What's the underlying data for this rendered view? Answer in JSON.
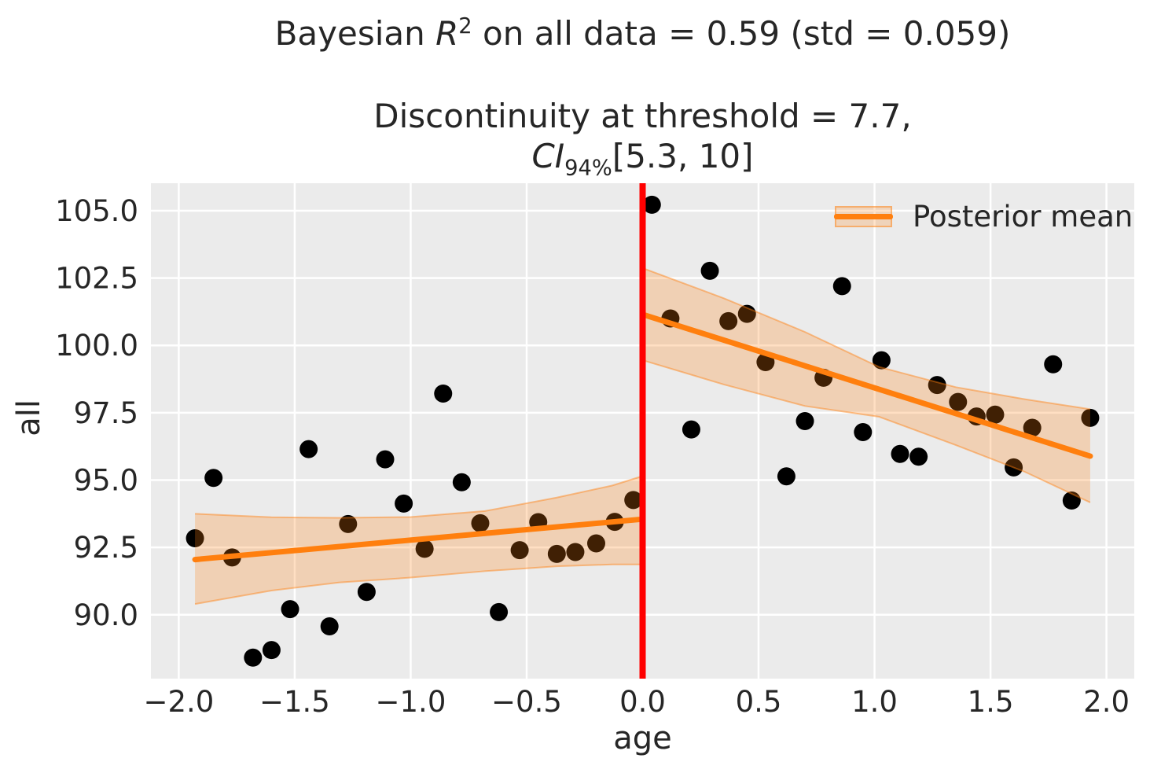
{
  "figure": {
    "title": {
      "pre": "Bayesian ",
      "r_var": "R",
      "r_sup": "2",
      "post": " on all data = 0.59 (std = 0.059)"
    },
    "subtitle": {
      "line1": "Discontinuity at threshold = 7.7,",
      "ci": "CI",
      "ci_sub": "94%",
      "interval": "[5.3, 10]"
    }
  },
  "colors": {
    "figure_bg": "#ffffff",
    "axes_bg": "#ebebeb",
    "grid": "#ffffff",
    "scatter": "#000000",
    "mean_line": "#ff7f0e",
    "band_fill": "rgba(255,127,14,0.25)",
    "band_edge": "rgba(255,127,14,0.45)",
    "threshold": "#ff0000",
    "text": "#262626"
  },
  "chart_data": {
    "type": "scatter",
    "title": "Bayesian R2 on all data = 0.59 (std = 0.059)",
    "subtitle": "Discontinuity at threshold = 7.7, CI94% [5.3, 10]",
    "xlabel": "age",
    "ylabel": "all",
    "xlim": [
      -2.12,
      2.12
    ],
    "ylim": [
      87.63,
      106.02
    ],
    "grid": true,
    "stats": {
      "r2": 0.59,
      "r2_std": 0.059,
      "discontinuity": 7.7,
      "ci_level": "94%",
      "ci_interval": [
        5.3,
        10
      ]
    },
    "xticks": {
      "values": [
        -2.0,
        -1.5,
        -1.0,
        -0.5,
        0.0,
        0.5,
        1.0,
        1.5,
        2.0
      ],
      "labels": [
        "−2.0",
        "−1.5",
        "−1.0",
        "−0.5",
        "0.0",
        "0.5",
        "1.0",
        "1.5",
        "2.0"
      ]
    },
    "yticks": {
      "values": [
        90.0,
        92.5,
        95.0,
        97.5,
        100.0,
        102.5,
        105.0
      ],
      "labels": [
        "90.0",
        "92.5",
        "95.0",
        "97.5",
        "100.0",
        "102.5",
        "105.0"
      ]
    },
    "threshold_line": {
      "x": 0.0
    },
    "legend": {
      "label": "Posterior mean",
      "position": "upper right"
    },
    "scatter": {
      "x": [
        -1.93,
        -1.85,
        -1.77,
        -1.68,
        -1.6,
        -1.52,
        -1.44,
        -1.35,
        -1.27,
        -1.19,
        -1.11,
        -1.03,
        -0.94,
        -0.86,
        -0.78,
        -0.7,
        -0.62,
        -0.53,
        -0.45,
        -0.37,
        -0.29,
        -0.2,
        -0.12,
        -0.04,
        0.04,
        0.12,
        0.21,
        0.29,
        0.37,
        0.45,
        0.53,
        0.62,
        0.7,
        0.78,
        0.86,
        0.95,
        1.03,
        1.11,
        1.19,
        1.27,
        1.36,
        1.44,
        1.52,
        1.6,
        1.68,
        1.77,
        1.85,
        1.93
      ],
      "y": [
        92.84,
        95.08,
        92.13,
        88.41,
        88.69,
        90.21,
        96.15,
        89.57,
        93.37,
        90.85,
        95.77,
        94.13,
        92.45,
        98.21,
        94.92,
        93.4,
        90.1,
        92.4,
        93.44,
        92.26,
        92.33,
        92.65,
        93.45,
        94.26,
        105.22,
        101.0,
        96.88,
        102.77,
        100.9,
        101.17,
        99.38,
        95.14,
        97.19,
        98.8,
        102.2,
        96.78,
        99.45,
        95.97,
        95.87,
        98.53,
        97.9,
        97.36,
        97.43,
        95.47,
        96.94,
        99.3,
        94.24,
        97.31
      ]
    },
    "posterior_mean": [
      {
        "side": "left",
        "x": [
          -1.93,
          0.0
        ],
        "y": [
          92.05,
          93.55
        ]
      },
      {
        "side": "right",
        "x": [
          0.0,
          1.93
        ],
        "y": [
          101.15,
          95.89
        ]
      }
    ],
    "ci_bands": [
      {
        "side": "left",
        "x": [
          -1.93,
          -1.6,
          -1.31,
          -1.0,
          -0.68,
          -0.37,
          -0.13,
          0.0
        ],
        "upper": [
          93.75,
          93.62,
          93.6,
          93.63,
          93.85,
          94.35,
          94.8,
          95.15
        ],
        "lower": [
          90.4,
          90.9,
          91.2,
          91.38,
          91.62,
          91.8,
          91.87,
          91.87
        ]
      },
      {
        "side": "right",
        "x": [
          0.0,
          0.35,
          0.7,
          1.02,
          1.35,
          1.65,
          1.93
        ],
        "upper": [
          102.87,
          101.75,
          100.5,
          99.2,
          98.45,
          98.0,
          97.63
        ],
        "lower": [
          99.45,
          98.55,
          97.75,
          97.35,
          96.3,
          95.3,
          94.17
        ]
      }
    ]
  }
}
